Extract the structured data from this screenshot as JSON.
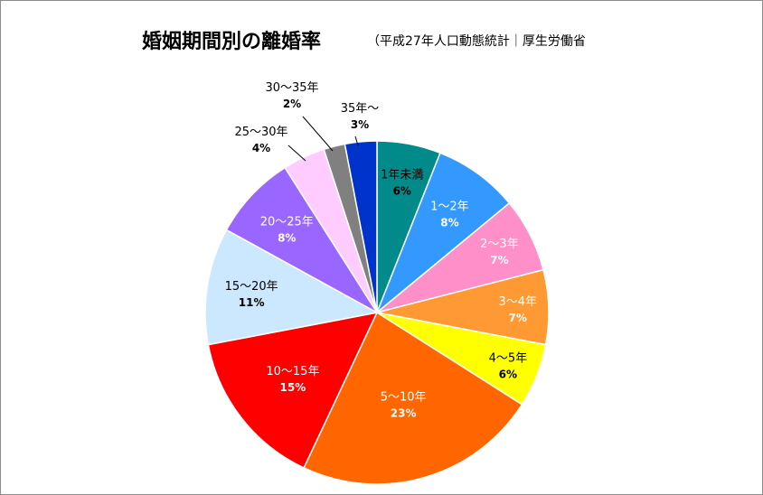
{
  "title": "婚姻期間別の離婚率",
  "subtitle": "（平成27年人口動態統計｜厚生労働省",
  "chart_data": {
    "type": "pie",
    "start": "12 o'clock, clockwise",
    "slices": [
      {
        "label": "1年未満",
        "pct_label": "6%",
        "value": 6,
        "color": "#008b8b",
        "text_color": "#000000"
      },
      {
        "label": "1～2年",
        "pct_label": "8%",
        "value": 8,
        "color": "#3399ff",
        "text_color": "#ffffff"
      },
      {
        "label": "2～3年",
        "pct_label": "7%",
        "value": 7,
        "color": "#ff8fc8",
        "text_color": "#ffffff"
      },
      {
        "label": "3～4年",
        "pct_label": "7%",
        "value": 7,
        "color": "#ff9933",
        "text_color": "#ffffff"
      },
      {
        "label": "4～5年",
        "pct_label": "6%",
        "value": 6,
        "color": "#ffff00",
        "text_color": "#000000"
      },
      {
        "label": "5～10年",
        "pct_label": "23%",
        "value": 23,
        "color": "#ff6600",
        "text_color": "#ffffff"
      },
      {
        "label": "10～15年",
        "pct_label": "15%",
        "value": 15,
        "color": "#ff0000",
        "text_color": "#ffffff"
      },
      {
        "label": "15～20年",
        "pct_label": "11%",
        "value": 11,
        "color": "#cce8ff",
        "text_color": "#000000"
      },
      {
        "label": "20～25年",
        "pct_label": "8%",
        "value": 8,
        "color": "#9966ff",
        "text_color": "#ffffff"
      },
      {
        "label": "25～30年",
        "pct_label": "4%",
        "value": 4,
        "color": "#ffccff",
        "text_color": "#000000"
      },
      {
        "label": "30～35年",
        "pct_label": "2%",
        "value": 2,
        "color": "#808080",
        "text_color": "#000000"
      },
      {
        "label": "35年～",
        "pct_label": "3%",
        "value": 3,
        "color": "#0033cc",
        "text_color": "#000000"
      }
    ]
  }
}
